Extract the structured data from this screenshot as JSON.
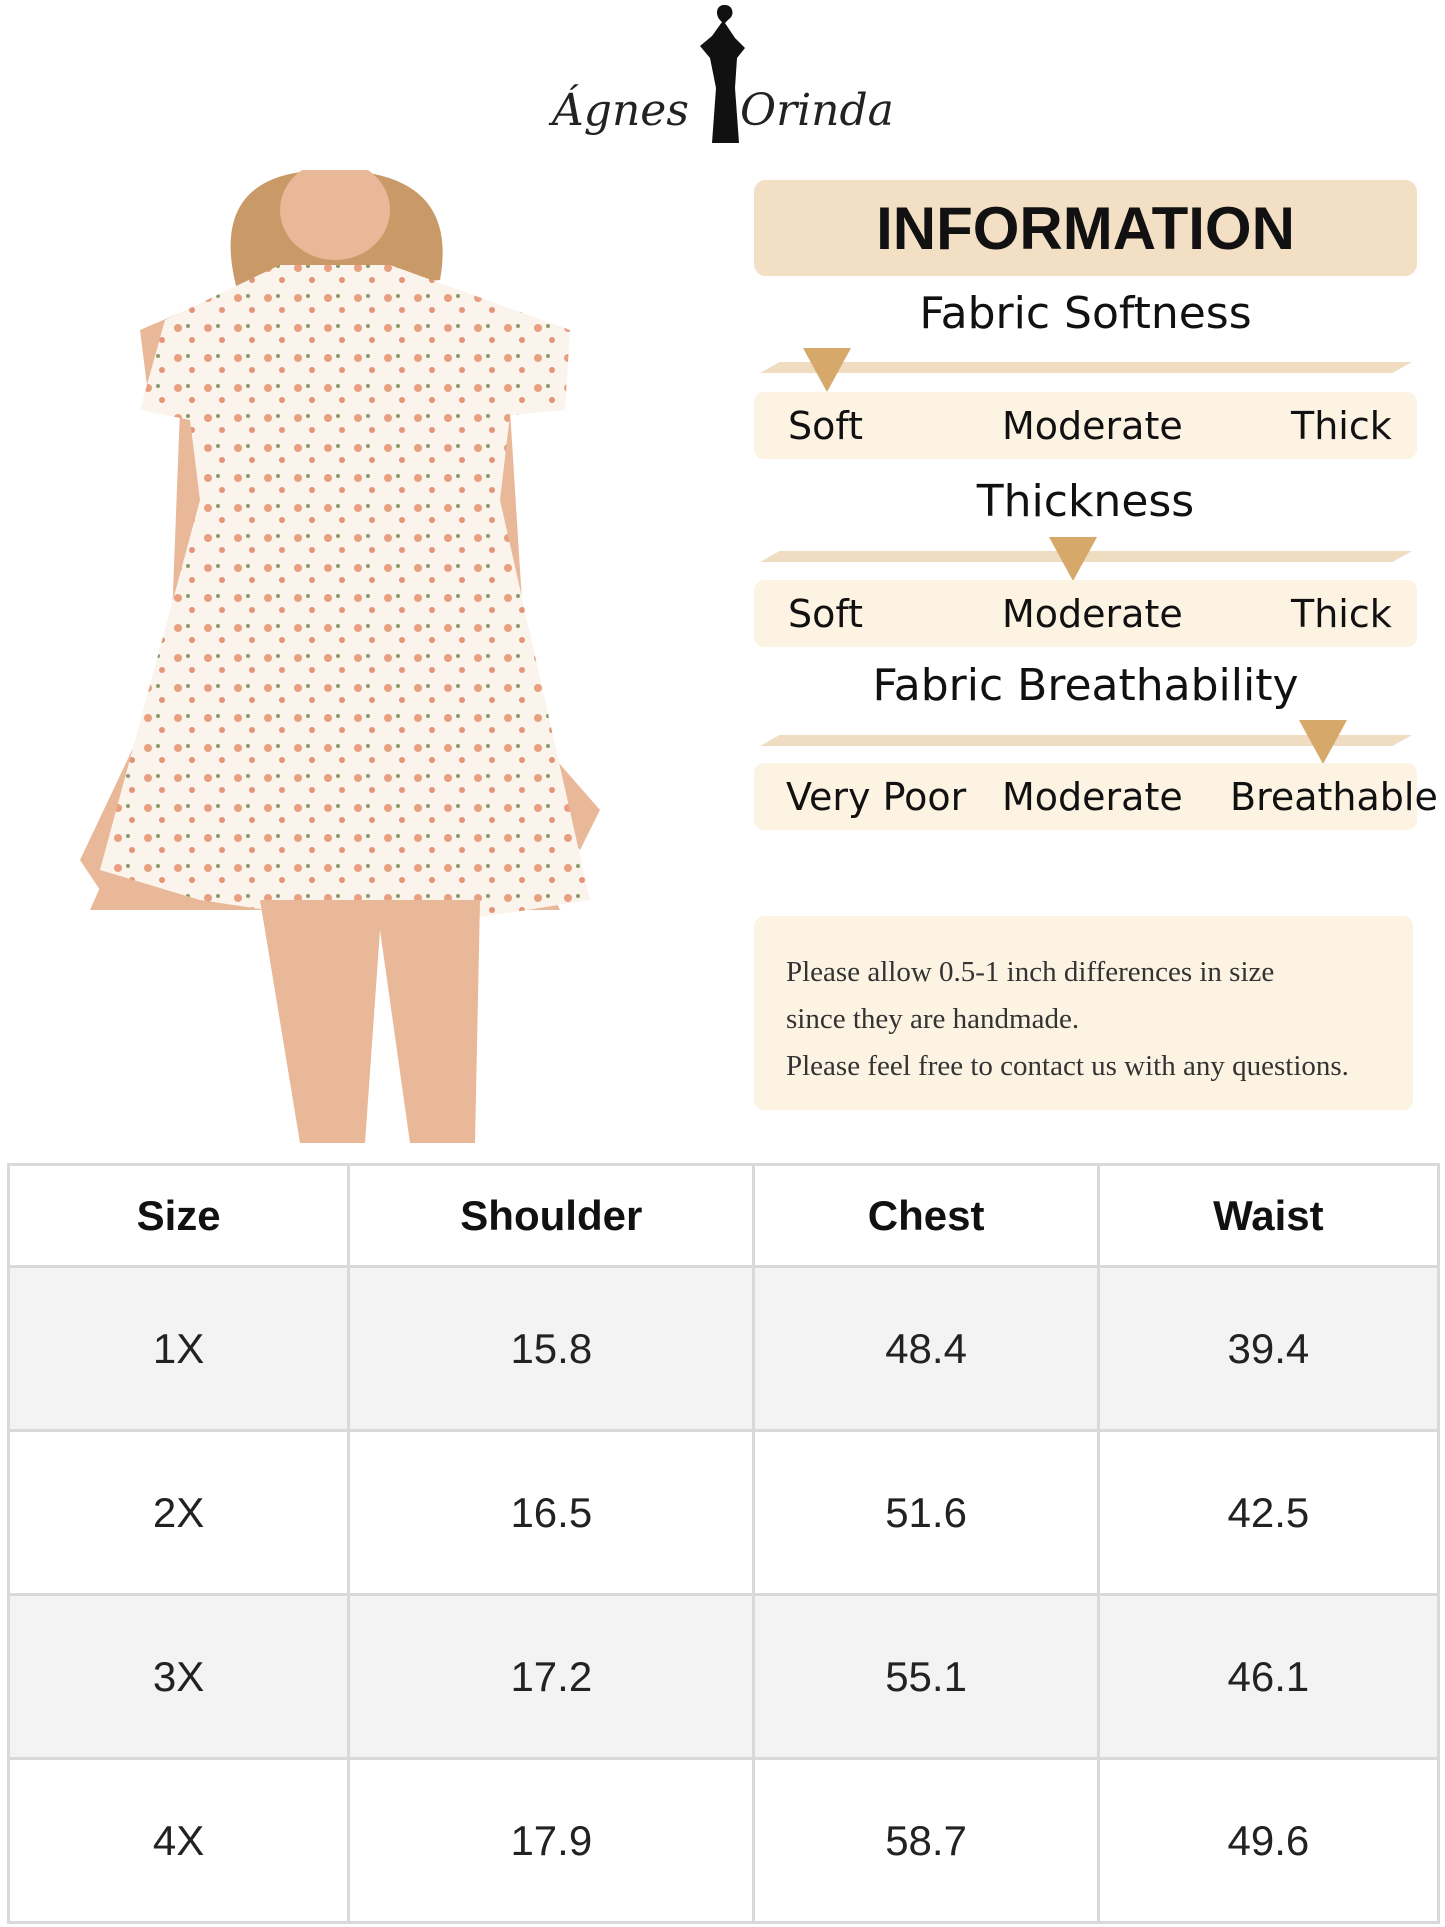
{
  "brand": {
    "left": "Ágnes",
    "right": "Orinda"
  },
  "info": {
    "title": "INFORMATION",
    "ratings": [
      {
        "title": "Fabric Softness",
        "labels": [
          "Soft",
          "Moderate",
          "Thick"
        ],
        "selected": "Soft",
        "position": 0.05
      },
      {
        "title": "Thickness",
        "labels": [
          "Soft",
          "Moderate",
          "Thick"
        ],
        "selected": "Moderate",
        "position": 0.5
      },
      {
        "title": "Fabric Breathability",
        "labels": [
          "Very Poor",
          "Moderate",
          "Breathable"
        ],
        "selected": "Breathable",
        "position": 0.95
      }
    ],
    "note": [
      "Please allow 0.5-1 inch differences in size",
      "since they are handmade.",
      "Please feel free to contact us with any questions."
    ]
  },
  "colors": {
    "header_bg": "#f2dfc4",
    "band_bg": "#fdf3e3",
    "marker": "#d6a86a"
  },
  "size_table": {
    "headers": [
      "Size",
      "Shoulder",
      "Chest",
      "Waist"
    ],
    "rows": [
      [
        "1X",
        "15.8",
        "48.4",
        "39.4"
      ],
      [
        "2X",
        "16.5",
        "51.6",
        "42.5"
      ],
      [
        "3X",
        "17.2",
        "55.1",
        "46.1"
      ],
      [
        "4X",
        "17.9",
        "58.7",
        "49.6"
      ]
    ]
  }
}
